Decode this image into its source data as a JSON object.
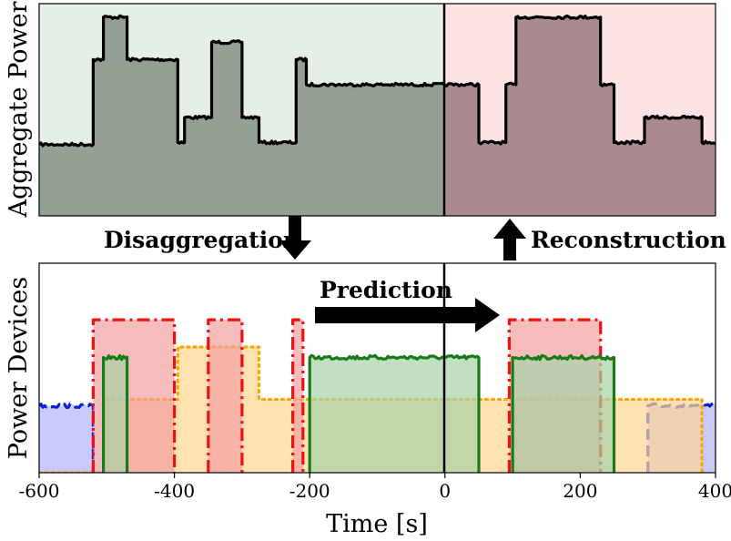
{
  "chart_data": [
    {
      "type": "area",
      "name": "aggregate",
      "ylabel": "Aggregate Power",
      "xlim": [
        -600,
        400
      ],
      "ylim": [
        0,
        11
      ],
      "split_x": 0,
      "past_color": "#e6efe6",
      "future_color": "#fde3e3",
      "past_fill": "#94a093",
      "future_fill": "#aa8a8e",
      "series": [
        {
          "name": "aggregate",
          "color": "#000000",
          "x": [
            -600,
            -520,
            -520,
            -505,
            -505,
            -470,
            -470,
            -395,
            -395,
            -385,
            -385,
            -345,
            -345,
            -300,
            -300,
            -275,
            -275,
            -220,
            -220,
            -205,
            -205,
            50,
            50,
            90,
            90,
            105,
            105,
            230,
            230,
            250,
            250,
            295,
            295,
            380,
            380,
            400
          ],
          "y": [
            3.7,
            3.7,
            8.1,
            8.1,
            10.3,
            10.3,
            8.1,
            8.1,
            3.8,
            3.8,
            5.1,
            5.1,
            9.0,
            9.0,
            5.1,
            5.1,
            3.8,
            3.8,
            8.1,
            8.1,
            6.8,
            6.8,
            3.8,
            3.8,
            6.8,
            6.8,
            10.3,
            10.3,
            6.8,
            6.8,
            3.8,
            3.8,
            5.1,
            5.1,
            3.8,
            3.8
          ]
        }
      ],
      "annotations": [
        "Disaggregation",
        "Reconstruction"
      ]
    },
    {
      "type": "area",
      "name": "devices",
      "ylabel": "Power Devices",
      "xlabel": "Time [s]",
      "xlim": [
        -600,
        400
      ],
      "ylim": [
        0,
        10
      ],
      "xticks": [
        -600,
        -400,
        -200,
        0,
        200,
        400
      ],
      "xtick_labels": [
        "-600",
        "-400",
        "-200",
        "0",
        "200",
        "400"
      ],
      "annotations": [
        "Prediction"
      ],
      "series": [
        {
          "name": "blue-device",
          "color": "#0a1fd0",
          "fill": "#b3b3ff",
          "style": "dashed",
          "segments": [
            {
              "x": [
                -600,
                -520,
                -520
              ],
              "y": [
                3.2,
                3.2,
                0
              ]
            },
            {
              "x": [
                300,
                300,
                400
              ],
              "y": [
                0,
                3.2,
                3.2
              ]
            }
          ]
        },
        {
          "name": "orange-device",
          "color": "#ffa500",
          "fill": "#ffd591",
          "style": "dotted",
          "segments": [
            {
              "x": [
                -600,
                -505,
                -505,
                -395,
                -395,
                -275,
                -275,
                380,
                380
              ],
              "y": [
                0,
                0,
                3.5,
                3.5,
                6.0,
                6.0,
                3.5,
                3.5,
                0
              ]
            }
          ]
        },
        {
          "name": "red-device",
          "color": "#ee1111",
          "fill": "#f4a0a0",
          "style": "dashdot",
          "segments": [
            {
              "x": [
                -520,
                -520,
                -400,
                -400
              ],
              "y": [
                0,
                7.3,
                7.3,
                0
              ]
            },
            {
              "x": [
                -350,
                -350,
                -300,
                -300
              ],
              "y": [
                0,
                7.3,
                7.3,
                0
              ]
            },
            {
              "x": [
                -225,
                -225,
                -210,
                -210
              ],
              "y": [
                0,
                7.3,
                7.3,
                0
              ]
            },
            {
              "x": [
                95,
                95,
                230,
                230
              ],
              "y": [
                0,
                7.3,
                7.3,
                0
              ]
            }
          ]
        },
        {
          "name": "green-device",
          "color": "#1a7a1a",
          "fill": "#a7d3a7",
          "style": "solid",
          "segments": [
            {
              "x": [
                -505,
                -505,
                -470,
                -470
              ],
              "y": [
                0,
                5.5,
                5.5,
                0
              ]
            },
            {
              "x": [
                -200,
                -200,
                50,
                50
              ],
              "y": [
                0,
                5.5,
                5.5,
                0
              ]
            },
            {
              "x": [
                100,
                100,
                250,
                250
              ],
              "y": [
                0,
                5.5,
                5.5,
                0
              ]
            }
          ]
        }
      ]
    }
  ],
  "labels": {
    "top_ylabel": "Aggregate Power",
    "bottom_ylabel": "Power Devices",
    "xlabel": "Time [s]",
    "disaggregation": "Disaggregation",
    "reconstruction": "Reconstruction",
    "prediction": "Prediction",
    "ticks": [
      "-600",
      "-400",
      "-200",
      "0",
      "200",
      "400"
    ]
  }
}
